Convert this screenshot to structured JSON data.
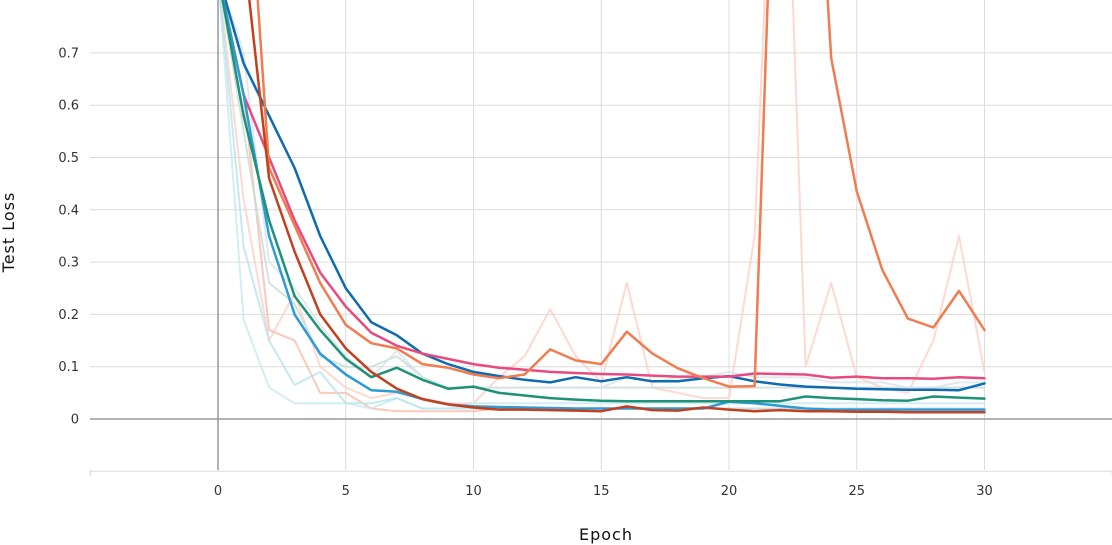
{
  "chart_data": {
    "type": "line",
    "xlabel": "Epoch",
    "ylabel": "Test Loss",
    "xlim": [
      -5,
      35
    ],
    "ylim": [
      -0.1,
      0.8
    ],
    "xticks": [
      0,
      5,
      10,
      15,
      20,
      25,
      30
    ],
    "yticks": [
      0,
      0.1,
      0.2,
      0.3,
      0.4,
      0.5,
      0.6,
      0.7
    ],
    "x_tick_labels": [
      "0",
      "5",
      "10",
      "15",
      "20",
      "25",
      "30"
    ],
    "y_tick_labels": [
      "0",
      "0.1",
      "0.2",
      "0.3",
      "0.4",
      "0.5",
      "0.6",
      "0.7"
    ],
    "grid": true,
    "x": [
      0,
      1,
      2,
      3,
      4,
      5,
      6,
      7,
      8,
      9,
      10,
      11,
      12,
      13,
      14,
      15,
      16,
      17,
      18,
      19,
      20,
      21,
      22,
      23,
      24,
      25,
      26,
      27,
      28,
      29,
      30
    ],
    "series": [
      {
        "color": "#FDD0C4",
        "opacity": 0.8,
        "width": 2,
        "values": [
          0.85,
          0.42,
          0.15,
          0.24,
          0.1,
          0.06,
          0.04,
          0.05,
          0.04,
          0.03,
          0.03,
          0.08,
          0.12,
          0.21,
          0.12,
          0.07,
          0.26,
          0.06,
          0.05,
          0.04,
          0.04,
          0.35,
          1.5,
          0.1,
          0.26,
          0.08,
          0.06,
          0.05,
          0.15,
          0.35,
          0.09
        ]
      },
      {
        "color": "#F7BBA8",
        "opacity": 0.8,
        "width": 2,
        "values": [
          0.85,
          0.62,
          0.17,
          0.15,
          0.05,
          0.05,
          0.02,
          0.015,
          0.015,
          0.015,
          0.015,
          0.02,
          0.02,
          0.02,
          0.02,
          0.02,
          0.02,
          0.02,
          0.02,
          0.02,
          0.02,
          0.02,
          0.02,
          0.02,
          0.02,
          0.02,
          0.02,
          0.02,
          0.02,
          0.02,
          0.02
        ]
      },
      {
        "color": "#C8E8F0",
        "opacity": 0.8,
        "width": 2,
        "values": [
          0.85,
          0.19,
          0.06,
          0.03,
          0.03,
          0.03,
          0.02,
          0.04,
          0.02,
          0.02,
          0.03,
          0.03,
          0.03,
          0.03,
          0.03,
          0.03,
          0.03,
          0.03,
          0.03,
          0.03,
          0.03,
          0.03,
          0.03,
          0.03,
          0.03,
          0.03,
          0.03,
          0.03,
          0.03,
          0.03,
          0.03
        ]
      },
      {
        "color": "#B7E3EE",
        "opacity": 0.8,
        "width": 2,
        "values": [
          0.85,
          0.33,
          0.15,
          0.065,
          0.09,
          0.03,
          0.03,
          0.04,
          0.02,
          0.02,
          0.02,
          0.02,
          0.02,
          0.02,
          0.02,
          0.02,
          0.02,
          0.02,
          0.02,
          0.02,
          0.02,
          0.02,
          0.02,
          0.02,
          0.02,
          0.02,
          0.02,
          0.02,
          0.02,
          0.02,
          0.02
        ]
      },
      {
        "color": "#C5DCD8",
        "opacity": 0.8,
        "width": 2,
        "values": [
          0.85,
          0.55,
          0.26,
          0.22,
          0.12,
          0.1,
          0.1,
          0.12,
          0.08,
          0.06,
          0.06,
          0.06,
          0.06,
          0.06,
          0.06,
          0.06,
          0.06,
          0.06,
          0.06,
          0.06,
          0.06,
          0.06,
          0.06,
          0.06,
          0.06,
          0.06,
          0.06,
          0.06,
          0.06,
          0.06,
          0.06
        ]
      },
      {
        "color": "#D8E3E8",
        "opacity": 0.8,
        "width": 2,
        "values": [
          0.85,
          0.7,
          0.3,
          0.25,
          0.18,
          0.12,
          0.08,
          0.13,
          0.08,
          0.06,
          0.06,
          0.06,
          0.06,
          0.06,
          0.06,
          0.06,
          0.08,
          0.07,
          0.08,
          0.08,
          0.09,
          0.08,
          0.08,
          0.08,
          0.07,
          0.07,
          0.07,
          0.06,
          0.06,
          0.07,
          0.07
        ]
      },
      {
        "color": "#0F6BB0",
        "opacity": 1,
        "width": 2.5,
        "values": [
          0.85,
          0.68,
          0.58,
          0.48,
          0.35,
          0.25,
          0.185,
          0.16,
          0.125,
          0.105,
          0.09,
          0.082,
          0.075,
          0.07,
          0.08,
          0.072,
          0.08,
          0.072,
          0.072,
          0.078,
          0.082,
          0.072,
          0.066,
          0.062,
          0.06,
          0.058,
          0.057,
          0.056,
          0.056,
          0.055,
          0.068
        ]
      },
      {
        "color": "#E94A7E",
        "opacity": 1,
        "width": 2.5,
        "values": [
          0.85,
          0.62,
          0.5,
          0.38,
          0.28,
          0.215,
          0.165,
          0.14,
          0.125,
          0.115,
          0.105,
          0.098,
          0.094,
          0.09,
          0.088,
          0.086,
          0.085,
          0.083,
          0.081,
          0.081,
          0.081,
          0.087,
          0.086,
          0.085,
          0.079,
          0.081,
          0.078,
          0.078,
          0.077,
          0.08,
          0.078
        ]
      },
      {
        "color": "#F07C4F",
        "opacity": 1,
        "width": 2.5,
        "values": [
          0.85,
          1.2,
          0.48,
          0.37,
          0.26,
          0.18,
          0.145,
          0.135,
          0.105,
          0.098,
          0.085,
          0.078,
          0.085,
          0.133,
          0.112,
          0.105,
          0.167,
          0.125,
          0.097,
          0.078,
          0.062,
          0.063,
          1.5,
          1.5,
          0.69,
          0.435,
          0.285,
          0.192,
          0.175,
          0.245,
          0.17
        ]
      },
      {
        "color": "#2D9BD6",
        "opacity": 1,
        "width": 2.5,
        "values": [
          0.85,
          0.62,
          0.35,
          0.2,
          0.125,
          0.085,
          0.055,
          0.052,
          0.038,
          0.028,
          0.024,
          0.023,
          0.022,
          0.021,
          0.02,
          0.02,
          0.02,
          0.02,
          0.02,
          0.02,
          0.033,
          0.03,
          0.025,
          0.02,
          0.018,
          0.018,
          0.018,
          0.018,
          0.018,
          0.018,
          0.018
        ]
      },
      {
        "color": "#1E9278",
        "opacity": 1,
        "width": 2.5,
        "values": [
          0.85,
          0.58,
          0.38,
          0.235,
          0.17,
          0.115,
          0.08,
          0.098,
          0.075,
          0.058,
          0.062,
          0.05,
          0.045,
          0.04,
          0.037,
          0.035,
          0.034,
          0.034,
          0.034,
          0.034,
          0.034,
          0.034,
          0.034,
          0.043,
          0.04,
          0.038,
          0.036,
          0.035,
          0.043,
          0.041,
          0.039
        ]
      },
      {
        "color": "#C2401E",
        "opacity": 1,
        "width": 2.5,
        "values": [
          0.85,
          0.9,
          0.46,
          0.32,
          0.2,
          0.135,
          0.09,
          0.058,
          0.038,
          0.028,
          0.022,
          0.018,
          0.018,
          0.017,
          0.016,
          0.015,
          0.024,
          0.017,
          0.016,
          0.022,
          0.018,
          0.015,
          0.017,
          0.015,
          0.015,
          0.014,
          0.014,
          0.013,
          0.013,
          0.013,
          0.013
        ]
      }
    ]
  }
}
